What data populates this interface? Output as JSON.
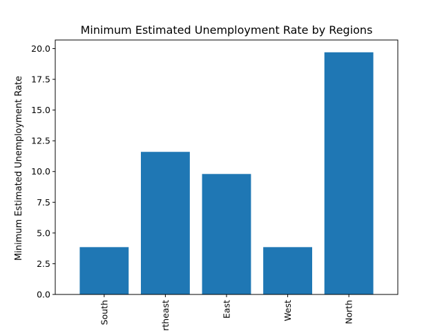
{
  "chart_data": {
    "type": "bar",
    "title": "Minimum Estimated Unemployment Rate by Regions",
    "xlabel": "",
    "ylabel": "Minimum Estimated Unemployment Rate",
    "categories": [
      "South",
      "Northeast",
      "East",
      "West",
      "North"
    ],
    "values": [
      3.85,
      11.6,
      9.8,
      3.85,
      19.7
    ],
    "ylim": [
      0,
      20.7
    ],
    "yticks": [
      0.0,
      2.5,
      5.0,
      7.5,
      10.0,
      12.5,
      15.0,
      17.5,
      20.0
    ],
    "ytick_labels": [
      "0.0",
      "2.5",
      "5.0",
      "7.5",
      "10.0",
      "12.5",
      "15.0",
      "17.5",
      "20.0"
    ],
    "bar_color": "#1f77b4",
    "grid": false,
    "legend": "none",
    "xtick_rotation_degrees": 90
  }
}
